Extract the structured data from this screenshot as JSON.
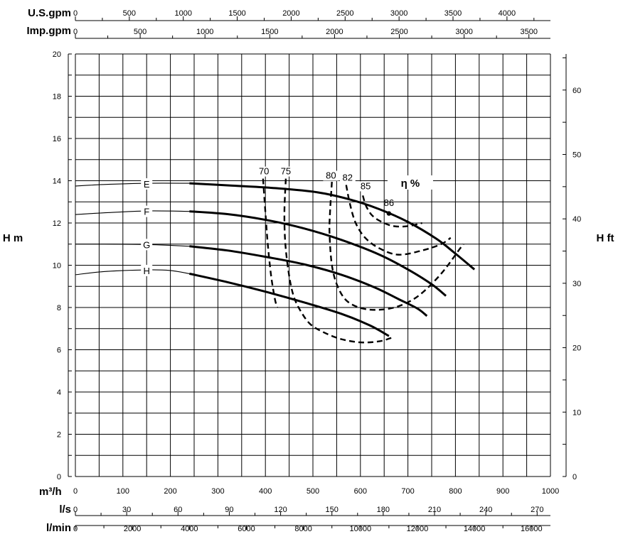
{
  "chart_data": {
    "type": "line",
    "title": "",
    "xlabel": "m³/h",
    "ylabel": "H m",
    "ylabel_right": "H ft",
    "xlim": [
      0,
      1000
    ],
    "ylim": [
      0,
      20
    ],
    "ylim_right": [
      0,
      65.6
    ],
    "grid": true,
    "x_ticks": [
      0,
      100,
      200,
      300,
      400,
      500,
      600,
      700,
      800,
      900,
      1000
    ],
    "y_ticks": [
      0,
      2,
      4,
      6,
      8,
      10,
      12,
      14,
      16,
      18,
      20
    ],
    "y_right_ticks": [
      0,
      10,
      20,
      30,
      40,
      50,
      60
    ],
    "top_scales": [
      {
        "label": "U.S.gpm",
        "ticks": [
          0,
          500,
          1000,
          1500,
          2000,
          2500,
          3000,
          3500,
          4000
        ],
        "per_m3h": 4.4029
      },
      {
        "label": "Imp.gpm",
        "ticks": [
          0,
          500,
          1000,
          1500,
          2000,
          2500,
          3000,
          3500
        ],
        "per_m3h": 3.6662
      }
    ],
    "bottom_scales": [
      {
        "label": "l/s",
        "ticks": [
          0,
          30,
          60,
          90,
          120,
          150,
          180,
          210,
          240,
          270
        ],
        "per_m3h": 0.27778
      },
      {
        "label": "l/min",
        "ticks": [
          0,
          2000,
          4000,
          6000,
          8000,
          10000,
          12000,
          14000,
          16000
        ],
        "per_m3h": 16.6667
      }
    ],
    "series": [
      {
        "name": "E",
        "label_at": [
          150,
          13.85
        ],
        "thin": [
          [
            0,
            13.75
          ],
          [
            60,
            13.82
          ],
          [
            150,
            13.88
          ],
          [
            240,
            13.88
          ]
        ],
        "values": [
          [
            240,
            13.88
          ],
          [
            330,
            13.77
          ],
          [
            420,
            13.65
          ],
          [
            510,
            13.45
          ],
          [
            580,
            13.1
          ],
          [
            640,
            12.65
          ],
          [
            700,
            12.05
          ],
          [
            760,
            11.25
          ],
          [
            800,
            10.55
          ],
          [
            840,
            9.8
          ]
        ]
      },
      {
        "name": "F",
        "label_at": [
          150,
          12.55
        ],
        "thin": [
          [
            0,
            12.4
          ],
          [
            60,
            12.48
          ],
          [
            150,
            12.57
          ],
          [
            240,
            12.55
          ]
        ],
        "values": [
          [
            240,
            12.55
          ],
          [
            320,
            12.42
          ],
          [
            400,
            12.15
          ],
          [
            480,
            11.75
          ],
          [
            560,
            11.2
          ],
          [
            640,
            10.5
          ],
          [
            700,
            9.8
          ],
          [
            750,
            9.1
          ],
          [
            780,
            8.55
          ]
        ]
      },
      {
        "name": "G",
        "label_at": [
          150,
          10.98
        ],
        "thin": [
          [
            0,
            11.0
          ],
          [
            60,
            11.0
          ],
          [
            150,
            10.98
          ],
          [
            240,
            10.9
          ]
        ],
        "values": [
          [
            240,
            10.9
          ],
          [
            320,
            10.7
          ],
          [
            400,
            10.4
          ],
          [
            480,
            10.05
          ],
          [
            560,
            9.55
          ],
          [
            630,
            8.95
          ],
          [
            680,
            8.4
          ],
          [
            720,
            7.95
          ],
          [
            740,
            7.6
          ]
        ]
      },
      {
        "name": "H",
        "label_at": [
          150,
          9.75
        ],
        "thin": [
          [
            0,
            9.55
          ],
          [
            60,
            9.7
          ],
          [
            150,
            9.78
          ],
          [
            200,
            9.75
          ],
          [
            240,
            9.6
          ]
        ],
        "values": [
          [
            240,
            9.6
          ],
          [
            320,
            9.2
          ],
          [
            400,
            8.75
          ],
          [
            480,
            8.25
          ],
          [
            560,
            7.7
          ],
          [
            620,
            7.15
          ],
          [
            660,
            6.65
          ]
        ]
      }
    ],
    "efficiency_curves": [
      {
        "label": "70",
        "label_at": [
          397,
          14.3
        ],
        "values": [
          [
            395,
            14.1
          ],
          [
            400,
            12.5
          ],
          [
            405,
            11.0
          ],
          [
            412,
            9.5
          ],
          [
            420,
            8.4
          ],
          [
            425,
            8.0
          ]
        ]
      },
      {
        "label": "75",
        "label_at": [
          443,
          14.3
        ],
        "values": [
          [
            443,
            14.1
          ],
          [
            440,
            12.5
          ],
          [
            442,
            11.0
          ],
          [
            450,
            9.5
          ],
          [
            460,
            8.5
          ],
          [
            475,
            7.8
          ],
          [
            495,
            7.2
          ],
          [
            525,
            6.8
          ],
          [
            560,
            6.5
          ],
          [
            600,
            6.35
          ],
          [
            640,
            6.4
          ],
          [
            670,
            6.6
          ]
        ]
      },
      {
        "label": "80",
        "label_at": [
          538,
          14.1
        ],
        "values": [
          [
            540,
            13.95
          ],
          [
            536,
            12.5
          ],
          [
            535,
            11.5
          ],
          [
            540,
            10.0
          ],
          [
            552,
            9.0
          ],
          [
            572,
            8.3
          ],
          [
            605,
            7.95
          ],
          [
            645,
            7.9
          ],
          [
            685,
            8.1
          ],
          [
            725,
            8.6
          ],
          [
            770,
            9.6
          ],
          [
            810,
            10.8
          ],
          [
            817,
            11.0
          ]
        ]
      },
      {
        "label": "82",
        "label_at": [
          573,
          14.0
        ],
        "values": [
          [
            570,
            13.8
          ],
          [
            578,
            12.9
          ],
          [
            590,
            12.0
          ],
          [
            610,
            11.3
          ],
          [
            640,
            10.8
          ],
          [
            680,
            10.5
          ],
          [
            730,
            10.7
          ],
          [
            770,
            11.0
          ],
          [
            790,
            11.3
          ]
        ]
      },
      {
        "label": "85",
        "label_at": [
          611,
          13.6
        ],
        "values": [
          [
            605,
            13.3
          ],
          [
            612,
            12.8
          ],
          [
            625,
            12.35
          ],
          [
            645,
            12.05
          ],
          [
            670,
            11.85
          ],
          [
            700,
            11.85
          ],
          [
            730,
            12.0
          ]
        ]
      }
    ],
    "annotations": [
      {
        "text": "86",
        "x": 660,
        "y": 12.6,
        "point": [
          660,
          12.45
        ]
      },
      {
        "text": "η %",
        "x": 705,
        "y": 13.85
      }
    ]
  }
}
